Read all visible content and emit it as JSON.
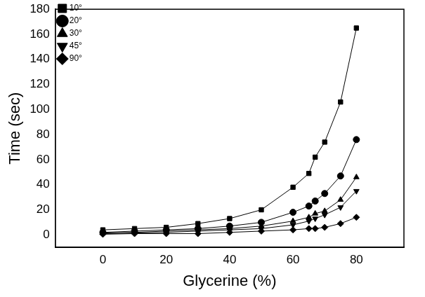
{
  "chart_data": {
    "type": "line",
    "x_label": "Glycerine (%)",
    "y_label": "Time (sec)",
    "x": [
      0,
      10,
      20,
      30,
      40,
      50,
      60,
      65,
      67,
      70,
      75,
      80
    ],
    "series": [
      {
        "name": "10°",
        "color": "#000000",
        "marker": "square",
        "values": [
          4,
          5,
          6,
          9,
          13,
          20,
          38,
          49,
          62,
          74,
          106,
          165
        ]
      },
      {
        "name": "20°",
        "color": "#000000",
        "marker": "circle",
        "values": [
          2,
          3,
          4,
          5,
          7,
          10,
          18,
          23,
          27,
          33,
          47,
          76
        ]
      },
      {
        "name": "30°",
        "color": "#000000",
        "marker": "triangle",
        "values": [
          1.5,
          2,
          3,
          4,
          5,
          7,
          11,
          14,
          17,
          19,
          28,
          46
        ]
      },
      {
        "name": "45°",
        "color": "#000000",
        "marker": "triangle_down",
        "values": [
          1,
          1.5,
          2,
          3,
          4,
          5,
          8,
          11,
          13,
          16,
          22,
          35
        ]
      },
      {
        "name": "90°",
        "color": "#000000",
        "marker": "diamond",
        "values": [
          0.5,
          1,
          1,
          1,
          2,
          3,
          4,
          5,
          5,
          6,
          9,
          14
        ]
      }
    ],
    "xlim": [
      -15,
      95
    ],
    "xticks": [
      0,
      20,
      40,
      60,
      80
    ],
    "ylim": [
      -10,
      180
    ],
    "yticks": [
      0,
      20,
      40,
      60,
      80,
      100,
      120,
      140,
      160,
      180
    ],
    "grid": false,
    "legend": "upper left"
  }
}
